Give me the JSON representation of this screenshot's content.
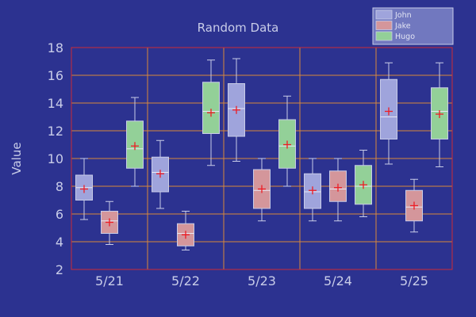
{
  "chart_data": {
    "type": "box",
    "title": "Random Data",
    "xlabel": "",
    "ylabel": "Value",
    "ylim": [
      2,
      18
    ],
    "yticks": [
      2,
      4,
      6,
      8,
      10,
      12,
      14,
      16,
      18
    ],
    "grid": true,
    "legend_position": "top-right",
    "categories": [
      "5/21",
      "5/22",
      "5/23",
      "5/24",
      "5/25"
    ],
    "series": [
      {
        "name": "John",
        "color": "#9fa4dc",
        "boxes": [
          {
            "min": 5.6,
            "q1": 7.0,
            "median": 7.9,
            "q3": 8.8,
            "max": 10.0,
            "mean": 7.8
          },
          {
            "min": 6.4,
            "q1": 7.6,
            "median": 9.0,
            "q3": 10.1,
            "max": 11.3,
            "mean": 8.9
          },
          {
            "min": 9.8,
            "q1": 11.6,
            "median": 13.6,
            "q3": 15.4,
            "max": 17.2,
            "mean": 13.5
          },
          {
            "min": 5.5,
            "q1": 6.4,
            "median": 7.6,
            "q3": 8.9,
            "max": 10.0,
            "mean": 7.7
          },
          {
            "min": 9.6,
            "q1": 11.4,
            "median": 13.0,
            "q3": 15.7,
            "max": 16.9,
            "mean": 13.4
          }
        ]
      },
      {
        "name": "Jake",
        "color": "#d4969b",
        "boxes": [
          {
            "min": 3.8,
            "q1": 4.6,
            "median": 5.5,
            "q3": 6.2,
            "max": 6.9,
            "mean": 5.4
          },
          {
            "min": 3.4,
            "q1": 3.7,
            "median": 4.6,
            "q3": 5.3,
            "max": 6.2,
            "mean": 4.5
          },
          {
            "min": 5.5,
            "q1": 6.4,
            "median": 7.7,
            "q3": 9.2,
            "max": 10.0,
            "mean": 7.8
          },
          {
            "min": 5.5,
            "q1": 6.9,
            "median": 7.8,
            "q3": 9.1,
            "max": 10.0,
            "mean": 7.9
          },
          {
            "min": 4.7,
            "q1": 5.5,
            "median": 6.5,
            "q3": 7.7,
            "max": 8.5,
            "mean": 6.6
          }
        ]
      },
      {
        "name": "Hugo",
        "color": "#93d098",
        "boxes": [
          {
            "min": 8.0,
            "q1": 9.3,
            "median": 10.7,
            "q3": 12.7,
            "max": 14.4,
            "mean": 10.9
          },
          {
            "min": 9.5,
            "q1": 11.8,
            "median": 13.4,
            "q3": 15.5,
            "max": 17.1,
            "mean": 13.3
          },
          {
            "min": 8.0,
            "q1": 9.3,
            "median": 10.9,
            "q3": 12.8,
            "max": 14.5,
            "mean": 11.0
          },
          {
            "min": 5.8,
            "q1": 6.7,
            "median": 8.0,
            "q3": 9.5,
            "max": 10.6,
            "mean": 8.1
          },
          {
            "min": 9.4,
            "q1": 11.4,
            "median": 13.4,
            "q3": 15.1,
            "max": 16.9,
            "mean": 13.2
          }
        ]
      }
    ],
    "colors": {
      "background": "#2c3290",
      "grid": "#d9883a",
      "plot_border": "#cc2a36",
      "text": "#c8cce8",
      "whisker": "#c8cce8",
      "mean_marker": "#ee1c24",
      "legend_bg": "#7178bf"
    }
  }
}
